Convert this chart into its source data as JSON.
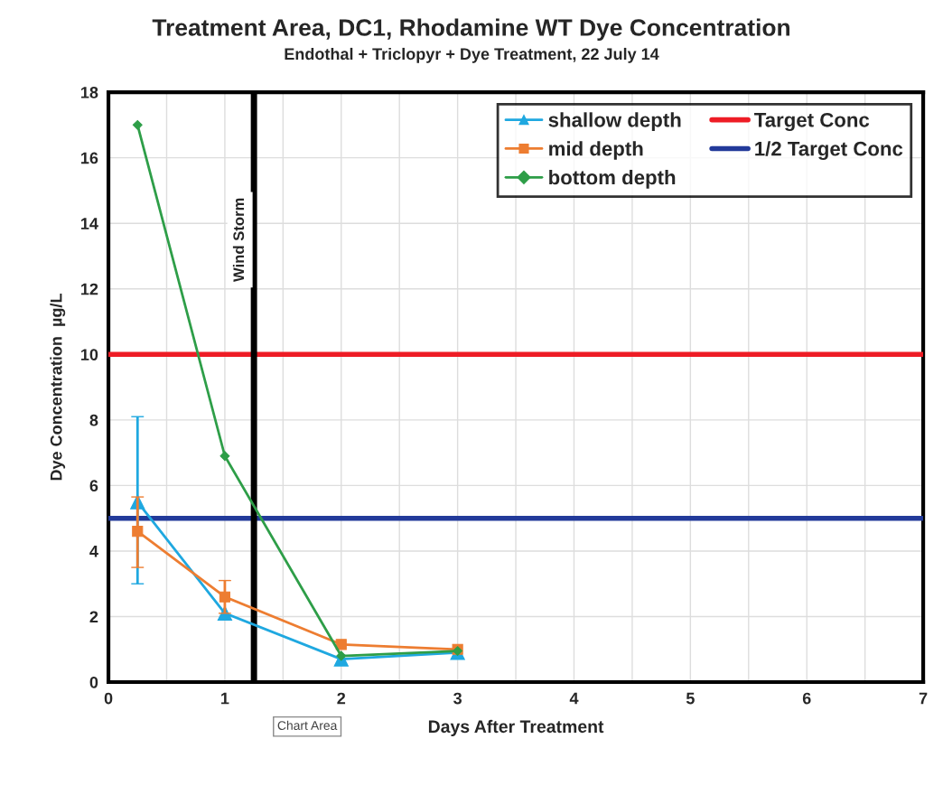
{
  "chart_data": {
    "type": "line",
    "title": "Treatment Area, DC1, Rhodamine WT Dye Concentration",
    "subtitle": "Endothal + Triclopyr + Dye Treatment, 22 July 14",
    "xlabel": "Days After Treatment",
    "ylabel": "Dye Concentration  µg/L",
    "x": [
      0.25,
      1,
      2,
      3
    ],
    "series": [
      {
        "name": "shallow depth",
        "color": "#1fa8e0",
        "marker": "triangle",
        "values": [
          5.5,
          2.1,
          0.7,
          0.9
        ],
        "errors": [
          [
            3.0,
            8.1
          ],
          null,
          null,
          null
        ]
      },
      {
        "name": "mid depth",
        "color": "#ed7d31",
        "marker": "square",
        "values": [
          4.6,
          2.6,
          1.15,
          1.0
        ],
        "errors": [
          [
            3.5,
            5.65
          ],
          0.5,
          null,
          null
        ]
      },
      {
        "name": "bottom depth",
        "color": "#2e9e48",
        "marker": "diamond",
        "values": [
          17.0,
          6.9,
          0.8,
          0.95
        ]
      }
    ],
    "ref_lines": [
      {
        "axis": "y",
        "value": 10,
        "label": "Target Conc",
        "color": "#ee1c25"
      },
      {
        "axis": "y",
        "value": 5,
        "label": "1/2 Target Conc",
        "color": "#223a9a"
      },
      {
        "axis": "x",
        "value": 1.25,
        "label": "Wind Storm",
        "color": "#000000"
      }
    ],
    "xlim": [
      0,
      7
    ],
    "ylim": [
      0,
      18
    ],
    "xticks": [
      0,
      {
        "value": 0.5,
        "label": null
      },
      1,
      {
        "value": 1.5,
        "label": null
      },
      2,
      {
        "value": 2.5,
        "label": null
      },
      3,
      {
        "value": 3.5,
        "label": null
      },
      4,
      {
        "value": 4.5,
        "label": null
      },
      5,
      {
        "value": 5.5,
        "label": null
      },
      6,
      {
        "value": 6.5,
        "label": null
      },
      7
    ],
    "yticks": [
      0,
      2,
      4,
      6,
      8,
      10,
      12,
      14,
      16,
      18
    ],
    "grid": true,
    "legend": "top right",
    "annotations": [
      "Chart Area"
    ]
  }
}
